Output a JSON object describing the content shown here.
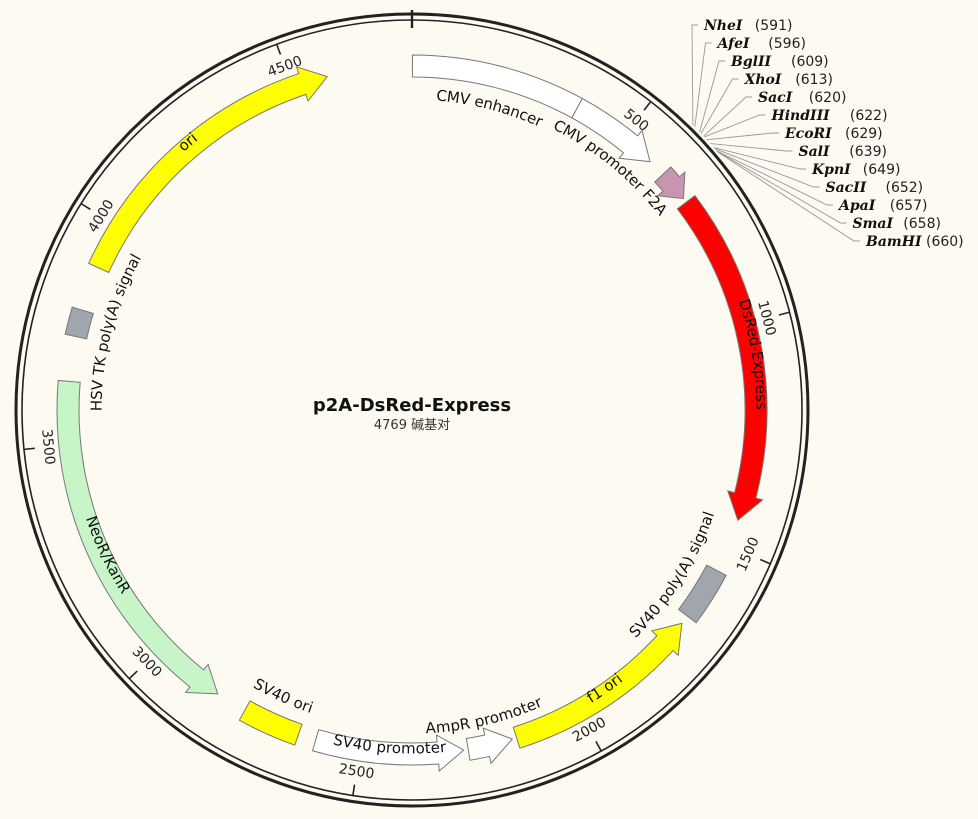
{
  "plasmid": {
    "name": "p2A-DsRed-Express",
    "size_label": "4769 碱基对",
    "length_bp": 4769
  },
  "ticks": [
    "500",
    "1000",
    "1500",
    "2000",
    "2500",
    "3000",
    "3500",
    "4000",
    "4500"
  ],
  "features": [
    {
      "name": "CMV enhancer",
      "start": 1,
      "end": 380,
      "kind": "box",
      "color": "#ffffff",
      "text_color": "#111111"
    },
    {
      "name": "CMV promoter",
      "start": 380,
      "end": 580,
      "kind": "arrow",
      "color": "#ffffff",
      "text_color": "#111111"
    },
    {
      "name": "F2A",
      "start": 620,
      "end": 690,
      "kind": "arrow",
      "color": "#c994b0",
      "text_color": "#111111"
    },
    {
      "name": "DsRed-Express",
      "start": 700,
      "end": 1440,
      "kind": "arrow",
      "color": "#ff0000",
      "text_color": "#ffffff"
    },
    {
      "name": "SV40 poly(A) signal",
      "start": 1560,
      "end": 1680,
      "kind": "box",
      "color": "#a0a6ae",
      "text_color": "#111111"
    },
    {
      "name": "f1 ori",
      "start": 1700,
      "end": 2150,
      "kind": "arrow_ccw",
      "color": "#ffff00",
      "text_color": "#111111"
    },
    {
      "name": "AmpR promoter",
      "start": 2160,
      "end": 2260,
      "kind": "arrow_ccw",
      "color": "#ffffff",
      "text_color": "#111111"
    },
    {
      "name": "SV40 promoter",
      "start": 2270,
      "end": 2600,
      "kind": "arrow_ccw",
      "color": "#ffffff",
      "text_color": "#111111"
    },
    {
      "name": "SV40 ori",
      "start": 2640,
      "end": 2770,
      "kind": "box",
      "color": "#ffff00",
      "text_color": "#111111"
    },
    {
      "name": "NeoR/KanR",
      "start": 2840,
      "end": 3640,
      "kind": "arrow_ccw",
      "color": "#c8f5c8",
      "text_color": "#111111"
    },
    {
      "name": "HSV TK poly(A) signal",
      "start": 3740,
      "end": 3800,
      "kind": "box",
      "color": "#a0a6ae",
      "text_color": "#111111"
    },
    {
      "name": "ori",
      "start": 3900,
      "end": 4580,
      "kind": "arrow",
      "color": "#ffff00",
      "text_color": "#111111"
    }
  ],
  "enzymes": [
    {
      "name": "NheI",
      "pos": "(591)",
      "color": "#111111"
    },
    {
      "name": "AfeI",
      "pos": "(596)",
      "color": "#2e8b2e"
    },
    {
      "name": "BglII",
      "pos": "(609)",
      "color": "#111111"
    },
    {
      "name": "XhoI",
      "pos": "(613)",
      "color": "#111111"
    },
    {
      "name": "SacI",
      "pos": "(620)",
      "color": "#111111"
    },
    {
      "name": "HindIII",
      "pos": "(622)",
      "color": "#111111"
    },
    {
      "name": "EcoRI",
      "pos": "(629)",
      "color": "#111111"
    },
    {
      "name": "SalI",
      "pos": "(639)",
      "color": "#111111"
    },
    {
      "name": "KpnI",
      "pos": "(649)",
      "color": "#111111"
    },
    {
      "name": "SacII",
      "pos": "(652)",
      "color": "#111111"
    },
    {
      "name": "ApaI",
      "pos": "(657)",
      "color": "#111111"
    },
    {
      "name": "SmaI",
      "pos": "(658)",
      "color": "#2e8b2e"
    },
    {
      "name": "BamHI",
      "pos": "(660)",
      "color": "#111111"
    }
  ]
}
